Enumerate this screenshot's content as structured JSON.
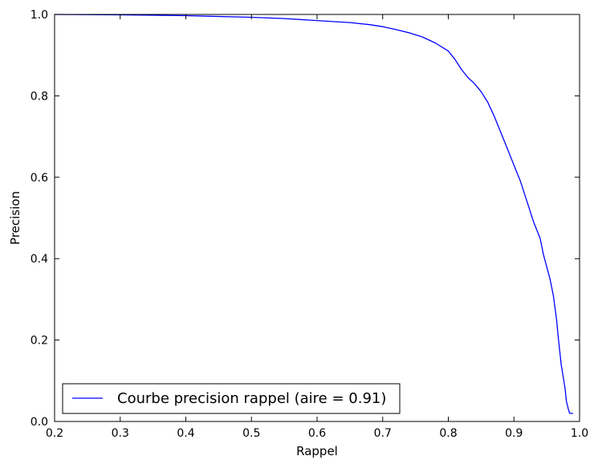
{
  "chart_data": {
    "type": "line",
    "title": "",
    "xlabel": "Rappel",
    "ylabel": "Precision",
    "xlim": [
      0.2,
      1.0
    ],
    "ylim": [
      0.0,
      1.0
    ],
    "xticks": [
      "0.2",
      "0.3",
      "0.4",
      "0.5",
      "0.6",
      "0.7",
      "0.8",
      "0.9",
      "1.0"
    ],
    "yticks": [
      "0.0",
      "0.2",
      "0.4",
      "0.6",
      "0.8",
      "1.0"
    ],
    "grid": false,
    "legend": {
      "position": "bottom-left"
    },
    "series": [
      {
        "name": "Courbe precision rappel (aire = 0.91)",
        "color": "#0000ff",
        "x": [
          0.2,
          0.3,
          0.4,
          0.5,
          0.55,
          0.6,
          0.65,
          0.68,
          0.7,
          0.72,
          0.74,
          0.76,
          0.78,
          0.8,
          0.81,
          0.82,
          0.83,
          0.84,
          0.85,
          0.86,
          0.87,
          0.88,
          0.89,
          0.9,
          0.91,
          0.92,
          0.93,
          0.94,
          0.945,
          0.95,
          0.955,
          0.96,
          0.965,
          0.968,
          0.97,
          0.972,
          0.975,
          0.978,
          0.98,
          0.983,
          0.985,
          0.99
        ],
        "y": [
          1.0,
          0.999,
          0.997,
          0.993,
          0.99,
          0.985,
          0.98,
          0.975,
          0.97,
          0.963,
          0.955,
          0.945,
          0.93,
          0.91,
          0.89,
          0.865,
          0.845,
          0.83,
          0.81,
          0.785,
          0.75,
          0.71,
          0.67,
          0.63,
          0.59,
          0.54,
          0.49,
          0.45,
          0.41,
          0.38,
          0.35,
          0.31,
          0.25,
          0.2,
          0.17,
          0.14,
          0.11,
          0.08,
          0.05,
          0.03,
          0.02,
          0.02
        ]
      }
    ]
  }
}
